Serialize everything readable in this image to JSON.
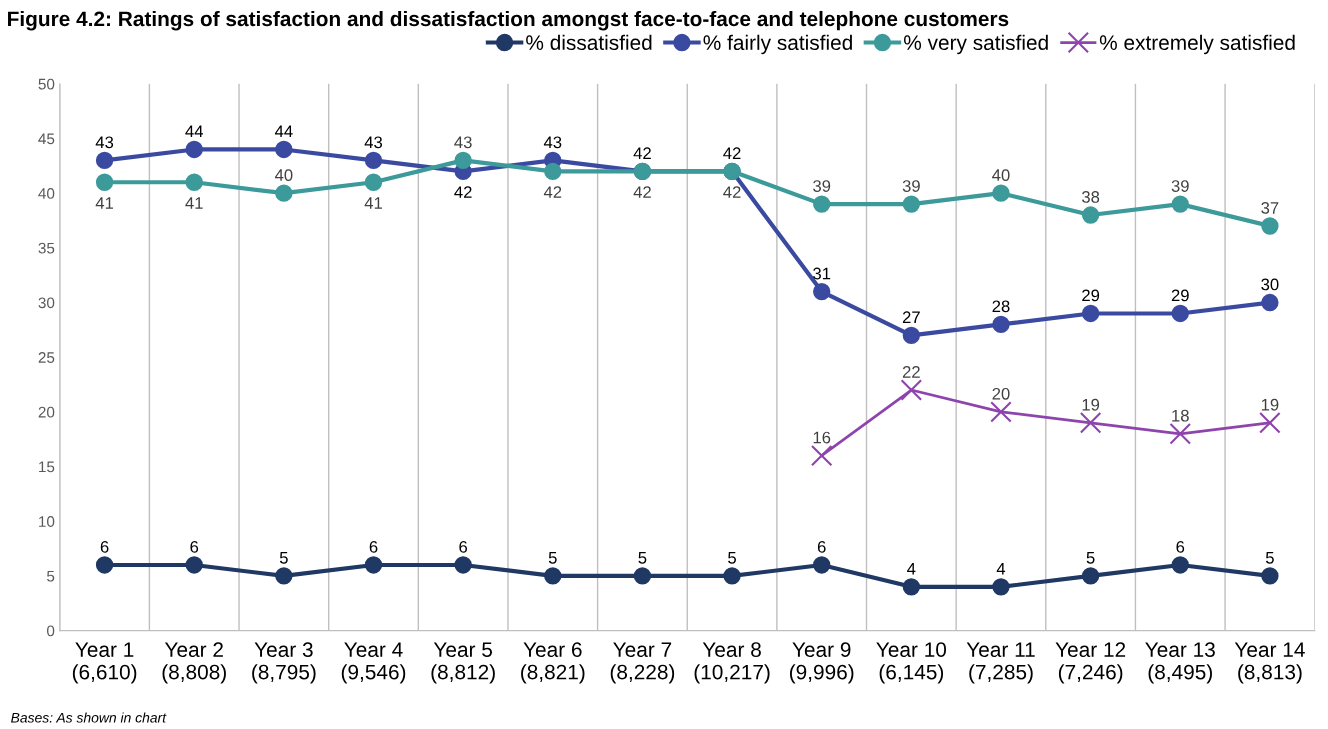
{
  "chart_data": {
    "type": "line",
    "title": "Figure 4.2: Ratings of satisfaction and dissatisfaction amongst face-to-face and telephone customers",
    "categories": [
      "Year 1\n(6,610)",
      "Year 2\n(8,808)",
      "Year 3\n(8,795)",
      "Year 4\n(9,546)",
      "Year 5\n(8,812)",
      "Year 6\n(8,821)",
      "Year 7\n(8,228)",
      "Year 8\n(10,217)",
      "Year 9\n(9,996)",
      "Year 10\n(6,145)",
      "Year 11\n(7,285)",
      "Year 12\n(7,246)",
      "Year 13\n(8,495)",
      "Year 14\n(8,813)"
    ],
    "series": [
      {
        "name": "% dissatisfied",
        "color": "#1f3864",
        "marker": "circle",
        "values": [
          6,
          6,
          5,
          6,
          6,
          5,
          5,
          5,
          6,
          4,
          4,
          5,
          6,
          5
        ]
      },
      {
        "name": "% fairly satisfied",
        "color": "#3a4aa0",
        "marker": "circle",
        "values": [
          43,
          44,
          44,
          43,
          42,
          43,
          42,
          42,
          31,
          27,
          28,
          29,
          29,
          30
        ]
      },
      {
        "name": "% very satisfied",
        "color": "#3d9a9a",
        "marker": "circle",
        "values": [
          41,
          41,
          40,
          41,
          43,
          42,
          42,
          42,
          39,
          39,
          40,
          38,
          39,
          37
        ]
      },
      {
        "name": "% extremely satisfied",
        "color": "#8e44ad",
        "marker": "cross",
        "values": [
          null,
          null,
          null,
          null,
          null,
          null,
          null,
          null,
          16,
          22,
          20,
          19,
          18,
          19
        ]
      }
    ],
    "ylim": [
      0,
      50
    ],
    "yticks": [
      0,
      5,
      10,
      15,
      20,
      25,
      30,
      35,
      40,
      45,
      50
    ],
    "grid": "x",
    "legend": "top right",
    "data_labels": true,
    "line_style": "solid",
    "annotations": [
      "Bases: As shown in chart"
    ]
  }
}
